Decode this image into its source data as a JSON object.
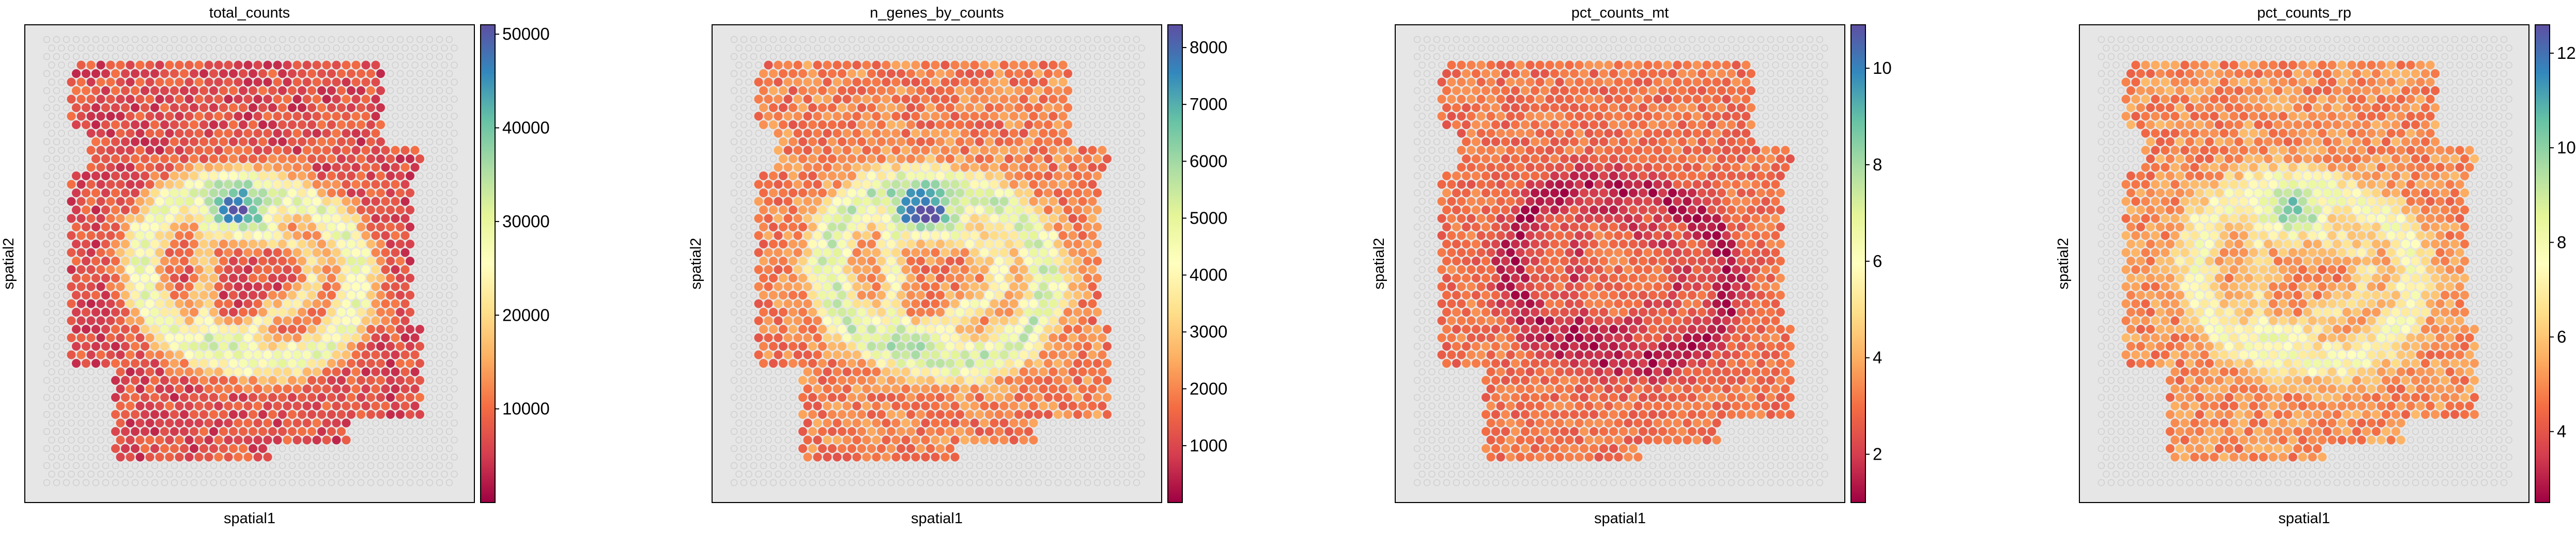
{
  "chart_data": [
    {
      "type": "scatter",
      "title": "total_counts",
      "xlabel": "spatial1",
      "ylabel": "spatial2",
      "colormap": "Spectral",
      "colorbar": {
        "min": 0,
        "max": 51000,
        "ticks": [
          10000,
          20000,
          30000,
          40000,
          50000
        ]
      },
      "value_pattern": {
        "base": 7000,
        "ring_amplitude": 22000,
        "hotspot_value": 40000,
        "noise": 4000
      }
    },
    {
      "type": "scatter",
      "title": "n_genes_by_counts",
      "xlabel": "spatial1",
      "ylabel": "spatial2",
      "colormap": "Spectral",
      "colorbar": {
        "min": 0,
        "max": 8400,
        "ticks": [
          1000,
          2000,
          3000,
          4000,
          5000,
          6000,
          7000,
          8000
        ]
      },
      "value_pattern": {
        "base": 1900,
        "ring_amplitude": 3500,
        "hotspot_value": 7000,
        "noise": 700
      }
    },
    {
      "type": "scatter",
      "title": "pct_counts_mt",
      "xlabel": "spatial1",
      "ylabel": "spatial2",
      "colormap": "Spectral",
      "colorbar": {
        "min": 1.0,
        "max": 10.9,
        "ticks": [
          2,
          4,
          6,
          8,
          10
        ]
      },
      "value_pattern": {
        "base": 3.0,
        "ring_amplitude": -1.6,
        "hotspot_value": 3.5,
        "noise": 0.6
      }
    },
    {
      "type": "scatter",
      "title": "pct_counts_rp",
      "xlabel": "spatial1",
      "ylabel": "spatial2",
      "colormap": "Spectral",
      "colorbar": {
        "min": 2.5,
        "max": 12.6,
        "ticks": [
          4,
          6,
          8,
          10,
          12
        ]
      },
      "value_pattern": {
        "base": 5.0,
        "ring_amplitude": 2.6,
        "hotspot_value": 9.5,
        "noise": 0.8
      }
    }
  ]
}
